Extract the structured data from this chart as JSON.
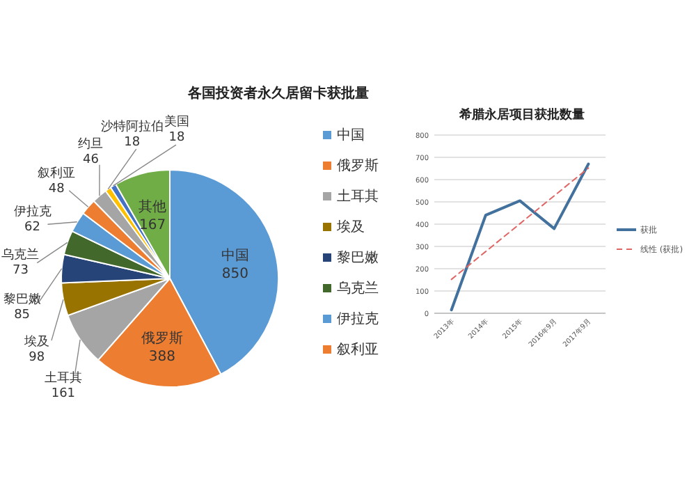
{
  "chart_data": [
    {
      "type": "pie",
      "title": "各国投资者永久居留卡获批量",
      "categories": [
        "中国",
        "俄罗斯",
        "土耳其",
        "埃及",
        "黎巴嫩",
        "乌克兰",
        "伊拉克",
        "叙利亚",
        "约旦",
        "沙特阿拉伯",
        "美国",
        "其他"
      ],
      "values": [
        850,
        388,
        161,
        98,
        85,
        73,
        62,
        48,
        46,
        18,
        18,
        167
      ],
      "colors": [
        "#5b9bd5",
        "#ed7d31",
        "#a5a5a5",
        "#997300",
        "#264478",
        "#43682b",
        "#5b9bd5",
        "#ed7d31",
        "#a5a5a5",
        "#ffc000",
        "#4472c4",
        "#70ad47"
      ],
      "data_labels": true,
      "legend": "right"
    },
    {
      "type": "line",
      "title": "希腊永居项目获批数量",
      "categories": [
        "2013年",
        "2014年",
        "2015年",
        "2016年9月",
        "2017年9月"
      ],
      "series": [
        {
          "name": "获批",
          "color": "#41719c",
          "values": [
            15,
            440,
            505,
            380,
            670
          ]
        },
        {
          "name": "线性 (获批)",
          "type": "line",
          "color": "#e06666",
          "line_style": "dashed",
          "values": [
            152,
            277,
            402,
            527,
            652
          ]
        }
      ],
      "ylim": [
        0,
        800
      ],
      "yticks": [
        0,
        100,
        200,
        300,
        400,
        500,
        600,
        700,
        800
      ],
      "grid": "y",
      "legend": "right",
      "marker": "none"
    }
  ]
}
